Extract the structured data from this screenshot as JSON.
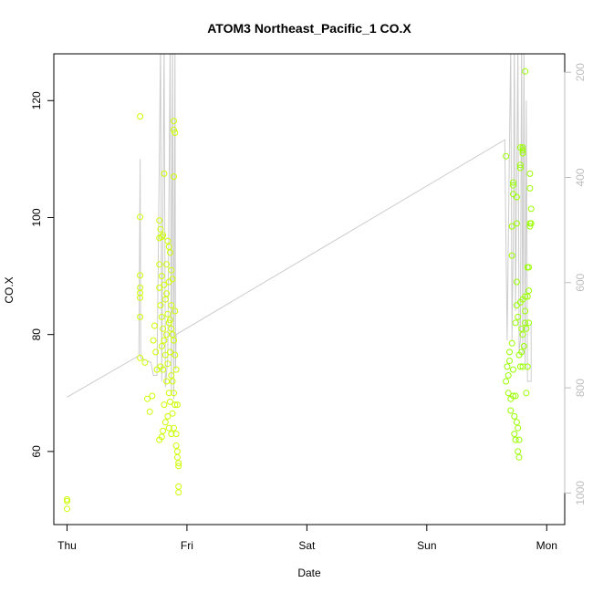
{
  "chart_data": {
    "type": "scatter",
    "title": "ATOM3 Northeast_Pacific_1 CO.X",
    "xlabel": "Date",
    "ylabel": "CO.X",
    "x_ticks": [
      "Thu",
      "Fri",
      "Sat",
      "Sun",
      "Mon"
    ],
    "x_tick_days": [
      0,
      1,
      2,
      3,
      4
    ],
    "xlim": [
      -0.11,
      4.15
    ],
    "ylim": [
      47.5,
      128
    ],
    "y_ticks": [
      60,
      80,
      100,
      120
    ],
    "y2lim": [
      1060,
      165
    ],
    "y2_ticks": [
      200,
      400,
      600,
      800,
      1000
    ],
    "grid": false,
    "colors": {
      "points_early": "#ccff00",
      "points_late": "#99ff00",
      "line": "#cccccc",
      "box": "#000000",
      "right_axis": "#bdbdbd"
    },
    "series": [
      {
        "type": "scatter",
        "points": [
          [
            0.0,
            51.5
          ],
          [
            0.0,
            51.8
          ],
          [
            0.0,
            50.2
          ],
          [
            0.61,
            117.3
          ],
          [
            0.61,
            100.1
          ],
          [
            0.61,
            90.1
          ],
          [
            0.61,
            88.0
          ],
          [
            0.61,
            87.1
          ],
          [
            0.61,
            86.3
          ],
          [
            0.61,
            83.0
          ],
          [
            0.61,
            76.0
          ],
          [
            0.65,
            75.2
          ],
          [
            0.67,
            69.0
          ],
          [
            0.69,
            66.8
          ],
          [
            0.71,
            69.5
          ],
          [
            0.72,
            79.0
          ],
          [
            0.73,
            81.5
          ],
          [
            0.74,
            77.0
          ],
          [
            0.75,
            74.0
          ],
          [
            0.77,
            99.5
          ],
          [
            0.77,
            96.5
          ],
          [
            0.77,
            92.0
          ],
          [
            0.77,
            88.0
          ],
          [
            0.77,
            62.0
          ],
          [
            0.78,
            98.0
          ],
          [
            0.78,
            85.0
          ],
          [
            0.78,
            74.5
          ],
          [
            0.79,
            96.7
          ],
          [
            0.79,
            90.0
          ],
          [
            0.79,
            83.0
          ],
          [
            0.79,
            78.0
          ],
          [
            0.79,
            62.5
          ],
          [
            0.8,
            97.0
          ],
          [
            0.8,
            81.0
          ],
          [
            0.8,
            74.0
          ],
          [
            0.8,
            63.5
          ],
          [
            0.81,
            107.5
          ],
          [
            0.81,
            88.5
          ],
          [
            0.81,
            79.0
          ],
          [
            0.81,
            68.0
          ],
          [
            0.82,
            86.0
          ],
          [
            0.82,
            76.5
          ],
          [
            0.82,
            65.0
          ],
          [
            0.83,
            92.0
          ],
          [
            0.83,
            87.0
          ],
          [
            0.83,
            80.0
          ],
          [
            0.83,
            72.0
          ],
          [
            0.84,
            96.0
          ],
          [
            0.84,
            83.5
          ],
          [
            0.84,
            75.0
          ],
          [
            0.84,
            66.0
          ],
          [
            0.85,
            95.0
          ],
          [
            0.85,
            89.0
          ],
          [
            0.85,
            82.0
          ],
          [
            0.85,
            70.0
          ],
          [
            0.85,
            64.0
          ],
          [
            0.86,
            94.0
          ],
          [
            0.86,
            82.5
          ],
          [
            0.86,
            77.0
          ],
          [
            0.86,
            68.5
          ],
          [
            0.87,
            91.0
          ],
          [
            0.87,
            85.0
          ],
          [
            0.87,
            81.0
          ],
          [
            0.87,
            73.0
          ],
          [
            0.87,
            63.0
          ],
          [
            0.88,
            89.5
          ],
          [
            0.88,
            80.0
          ],
          [
            0.88,
            72.0
          ],
          [
            0.88,
            66.5
          ],
          [
            0.89,
            116.5
          ],
          [
            0.89,
            115.0
          ],
          [
            0.89,
            107.0
          ],
          [
            0.89,
            79.0
          ],
          [
            0.89,
            70.0
          ],
          [
            0.89,
            64.0
          ],
          [
            0.9,
            114.5
          ],
          [
            0.9,
            84.0
          ],
          [
            0.9,
            76.5
          ],
          [
            0.9,
            68.0
          ],
          [
            0.91,
            74.0
          ],
          [
            0.91,
            63.0
          ],
          [
            0.91,
            61.0
          ],
          [
            0.92,
            68.0
          ],
          [
            0.92,
            60.0
          ],
          [
            0.92,
            59.0
          ],
          [
            0.93,
            58.0
          ],
          [
            0.93,
            57.5
          ],
          [
            0.93,
            54.0
          ],
          [
            0.93,
            53.0
          ]
        ],
        "color": "#ccff00"
      },
      {
        "type": "scatter",
        "points": [
          [
            3.66,
            110.5
          ],
          [
            3.66,
            72.0
          ],
          [
            3.67,
            74.5
          ],
          [
            3.68,
            73.0
          ],
          [
            3.68,
            70.0
          ],
          [
            3.69,
            75.5
          ],
          [
            3.69,
            77.0
          ],
          [
            3.7,
            67.0
          ],
          [
            3.7,
            69.0
          ],
          [
            3.71,
            78.5
          ],
          [
            3.71,
            98.5
          ],
          [
            3.71,
            93.5
          ],
          [
            3.72,
            104.0
          ],
          [
            3.72,
            106.0
          ],
          [
            3.72,
            105.5
          ],
          [
            3.72,
            74.0
          ],
          [
            3.72,
            69.5
          ],
          [
            3.73,
            66.0
          ],
          [
            3.73,
            63.0
          ],
          [
            3.74,
            62.0
          ],
          [
            3.74,
            69.5
          ],
          [
            3.74,
            82.0
          ],
          [
            3.75,
            85.0
          ],
          [
            3.75,
            89.0
          ],
          [
            3.75,
            99.0
          ],
          [
            3.75,
            103.5
          ],
          [
            3.75,
            65.0
          ],
          [
            3.76,
            64.0
          ],
          [
            3.76,
            60.0
          ],
          [
            3.76,
            83.0
          ],
          [
            3.77,
            59.0
          ],
          [
            3.77,
            62.0
          ],
          [
            3.77,
            76.5
          ],
          [
            3.78,
            108.5
          ],
          [
            3.78,
            109.0
          ],
          [
            3.78,
            112.0
          ],
          [
            3.78,
            85.5
          ],
          [
            3.78,
            74.5
          ],
          [
            3.79,
            81.0
          ],
          [
            3.79,
            77.0
          ],
          [
            3.8,
            112.0
          ],
          [
            3.8,
            111.5
          ],
          [
            3.8,
            111.0
          ],
          [
            3.8,
            86.0
          ],
          [
            3.8,
            80.0
          ],
          [
            3.8,
            74.5
          ],
          [
            3.81,
            78.0
          ],
          [
            3.82,
            125.0
          ],
          [
            3.82,
            86.5
          ],
          [
            3.82,
            84.0
          ],
          [
            3.82,
            82.0
          ],
          [
            3.83,
            81.0
          ],
          [
            3.83,
            70.0
          ],
          [
            3.84,
            91.5
          ],
          [
            3.84,
            86.5
          ],
          [
            3.84,
            74.5
          ],
          [
            3.85,
            91.5
          ],
          [
            3.85,
            87.5
          ],
          [
            3.85,
            82.0
          ],
          [
            3.86,
            107.5
          ],
          [
            3.86,
            105.0
          ],
          [
            3.86,
            99.0
          ],
          [
            3.86,
            98.5
          ],
          [
            3.87,
            101.5
          ],
          [
            3.87,
            99.0
          ]
        ],
        "color": "#99ff00"
      },
      {
        "type": "line",
        "points": [
          [
            0.0,
            69.3
          ],
          [
            0.6,
            76.4
          ],
          [
            0.61,
            110.0
          ],
          [
            0.615,
            76.0
          ],
          [
            0.7,
            75.2
          ],
          [
            0.72,
            73.0
          ],
          [
            0.75,
            73.0
          ],
          [
            0.78,
            130
          ],
          [
            0.79,
            72.0
          ],
          [
            0.81,
            130
          ],
          [
            0.82,
            71.0
          ],
          [
            0.84,
            76.0
          ],
          [
            0.86,
            130
          ],
          [
            0.87,
            70.0
          ],
          [
            0.88,
            130
          ],
          [
            0.89,
            69.0
          ],
          [
            0.9,
            130
          ],
          [
            0.905,
            74.0
          ],
          [
            0.91,
            80.0
          ],
          [
            3.65,
            113.3
          ],
          [
            3.655,
            105.0
          ],
          [
            3.67,
            79.0
          ],
          [
            3.7,
            130
          ],
          [
            3.71,
            79.0
          ],
          [
            3.72,
            95.0
          ],
          [
            3.73,
            130
          ],
          [
            3.74,
            84.0
          ],
          [
            3.76,
            130
          ],
          [
            3.77,
            77.0
          ],
          [
            3.78,
            79.0
          ],
          [
            3.79,
            130
          ],
          [
            3.8,
            76.5
          ],
          [
            3.81,
            130
          ],
          [
            3.82,
            74.5
          ],
          [
            3.83,
            120.0
          ],
          [
            3.84,
            72.0
          ],
          [
            3.87,
            72.0
          ],
          [
            3.87,
            82.0
          ]
        ],
        "color": "#cccccc"
      }
    ]
  }
}
